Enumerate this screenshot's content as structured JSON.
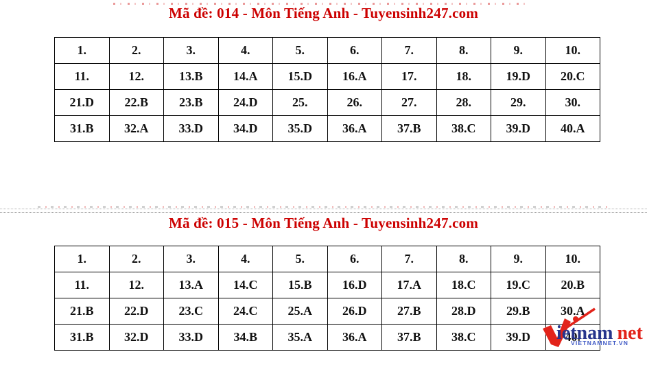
{
  "page": {
    "background": "#ffffff"
  },
  "colors": {
    "title_red": "#cc0000",
    "table_border": "#000000",
    "table_text": "#111111",
    "divider_gray": "#9a9a9a",
    "logo_blue": "#26358c",
    "logo_red": "#e2231a",
    "caption_blue": "#3d57c4"
  },
  "sections": [
    {
      "exam_code": "014",
      "title": "Mã đề: 014 - Môn Tiếng Anh - Tuyensinh247.com",
      "rows": [
        [
          "1.",
          "2.",
          "3.",
          "4.",
          "5.",
          "6.",
          "7.",
          "8.",
          "9.",
          "10."
        ],
        [
          "11.",
          "12.",
          "13.B",
          "14.A",
          "15.D",
          "16.A",
          "17.",
          "18.",
          "19.D",
          "20.C"
        ],
        [
          "21.D",
          "22.B",
          "23.B",
          "24.D",
          "25.",
          "26.",
          "27.",
          "28.",
          "29.",
          "30."
        ],
        [
          "31.B",
          "32.A",
          "33.D",
          "34.D",
          "35.D",
          "36.A",
          "37.B",
          "38.C",
          "39.D",
          "40.A"
        ]
      ]
    },
    {
      "exam_code": "015",
      "title": "Mã đề: 015 - Môn Tiếng Anh - Tuyensinh247.com",
      "rows": [
        [
          "1.",
          "2.",
          "3.",
          "4.",
          "5.",
          "6.",
          "7.",
          "8.",
          "9.",
          "10."
        ],
        [
          "11.",
          "12.",
          "13.A",
          "14.C",
          "15.B",
          "16.D",
          "17.A",
          "18.C",
          "19.C",
          "20.B"
        ],
        [
          "21.B",
          "22.D",
          "23.C",
          "24.C",
          "25.A",
          "26.D",
          "27.B",
          "28.D",
          "29.B",
          "30.A"
        ],
        [
          "31.B",
          "32.D",
          "33.D",
          "34.B",
          "35.A",
          "36.A",
          "37.B",
          "38.C",
          "39.D",
          "40."
        ]
      ]
    }
  ],
  "watermark": {
    "icon": "vietnamnet-red-v-swoosh",
    "text_blue": "ietnam",
    "text_red": "net",
    "caption": "VIETNAMNET.VN"
  }
}
